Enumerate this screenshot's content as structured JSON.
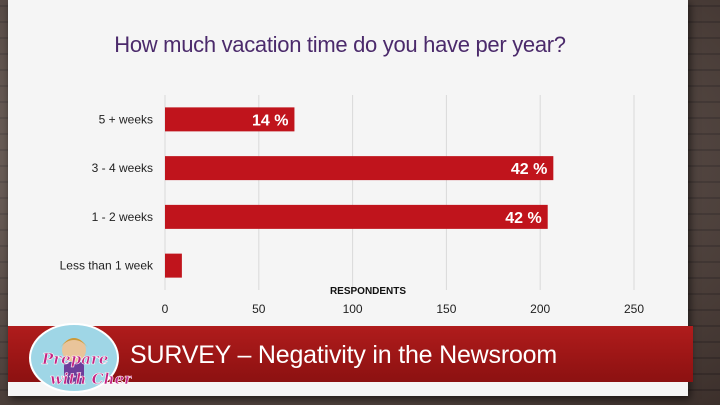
{
  "slide": {
    "title": "How much vacation time do you have per year?",
    "banner": "SURVEY – Negativity in the Newsroom",
    "logo_text": "Prepare with Cher"
  },
  "colors": {
    "bar": "#c0141c",
    "title": "#4b2a6b",
    "banner": "#a51818"
  },
  "chart_data": {
    "type": "bar",
    "orientation": "horizontal",
    "title": "How much vacation time do you have per year?",
    "xlabel": "RESPONDENTS",
    "ylabel": "",
    "categories": [
      "5 + weeks",
      "3 - 4 weeks",
      "1 - 2 weeks",
      "Less than 1 week"
    ],
    "values": [
      69,
      207,
      204,
      9
    ],
    "data_labels": [
      "14 %",
      "42 %",
      "42 %",
      ""
    ],
    "xlim": [
      0,
      250
    ],
    "xticks": [
      "0",
      "50",
      "100",
      "150",
      "200",
      "250"
    ],
    "grid": true
  }
}
